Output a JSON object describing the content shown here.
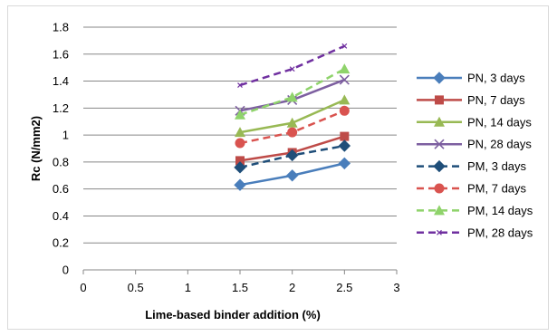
{
  "chart_data": {
    "type": "line",
    "xlabel": "Lime-based binder addition (%)",
    "ylabel": "Rc (N/mm2)",
    "xlim": [
      0,
      3
    ],
    "ylim": [
      0,
      1.8
    ],
    "xticks": [
      "0",
      "0.5",
      "1",
      "1.5",
      "2",
      "2.5",
      "3"
    ],
    "yticks": [
      "0",
      "0.2",
      "0.4",
      "0.6",
      "0.8",
      "1",
      "1.2",
      "1.4",
      "1.6",
      "1.8"
    ],
    "grid": "horizontal",
    "legend_position": "right",
    "x": [
      1.5,
      2,
      2.5
    ],
    "series": [
      {
        "name": "PN, 3 days",
        "values": [
          0.63,
          0.7,
          0.79
        ],
        "color": "#4a7ebb",
        "marker": "diamond",
        "dash": false
      },
      {
        "name": "PN, 7 days",
        "values": [
          0.81,
          0.87,
          0.99
        ],
        "color": "#be4b48",
        "marker": "square",
        "dash": false
      },
      {
        "name": "PN, 14 days",
        "values": [
          1.02,
          1.09,
          1.26
        ],
        "color": "#98b954",
        "marker": "triangle",
        "dash": false
      },
      {
        "name": "PN, 28 days",
        "values": [
          1.18,
          1.26,
          1.41
        ],
        "color": "#7d5fa0",
        "marker": "x",
        "dash": false
      },
      {
        "name": "PM, 3 days",
        "values": [
          0.76,
          0.85,
          0.92
        ],
        "color": "#1f4e79",
        "marker": "diamond",
        "dash": true
      },
      {
        "name": "PM, 7 days",
        "values": [
          0.94,
          1.02,
          1.18
        ],
        "color": "#d9534f",
        "marker": "circle",
        "dash": true
      },
      {
        "name": "PM, 14 days",
        "values": [
          1.15,
          1.28,
          1.49
        ],
        "color": "#8fd36b",
        "marker": "triangle",
        "dash": true
      },
      {
        "name": "PM, 28 days",
        "values": [
          1.37,
          1.49,
          1.66
        ],
        "color": "#7030a0",
        "marker": "smallx",
        "dash": true
      }
    ]
  }
}
